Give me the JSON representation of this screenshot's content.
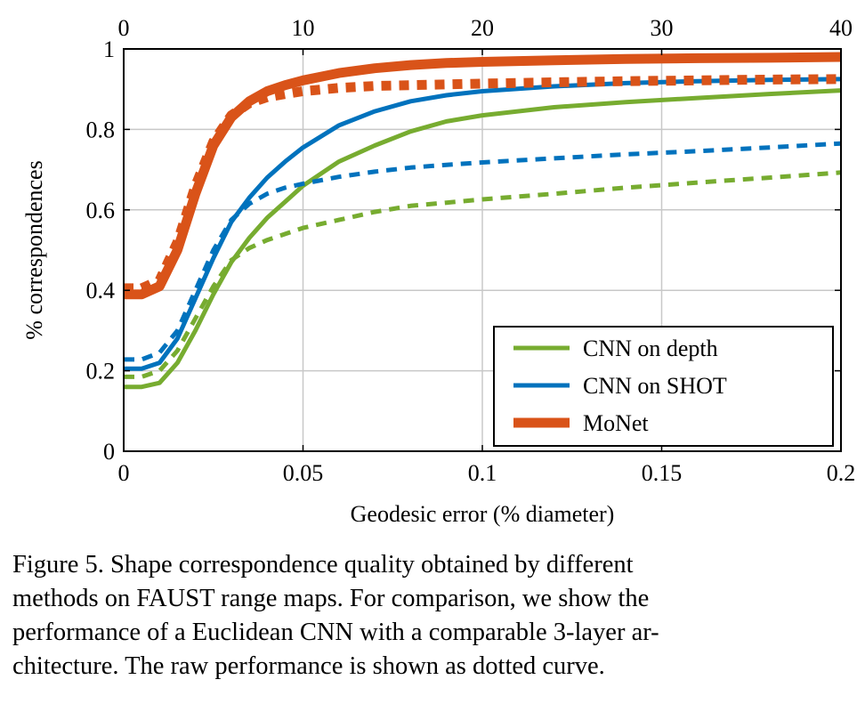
{
  "chart_data": {
    "type": "line",
    "x_bottom": {
      "label": "Geodesic error (% diameter)",
      "range": [
        0,
        0.2
      ],
      "ticks": [
        0,
        0.05,
        0.1,
        0.15,
        0.2
      ],
      "tick_labels": [
        "0",
        "0.05",
        "0.1",
        "0.15",
        "0.2"
      ]
    },
    "x_top": {
      "range": [
        0,
        40
      ],
      "ticks": [
        0,
        10,
        20,
        30,
        40
      ],
      "tick_labels": [
        "0",
        "10",
        "20",
        "30",
        "40"
      ]
    },
    "y": {
      "label": "% correspondences",
      "range": [
        0,
        1
      ],
      "ticks": [
        0,
        0.2,
        0.4,
        0.6,
        0.8,
        1
      ],
      "tick_labels": [
        "0",
        "0.2",
        "0.4",
        "0.6",
        "0.8",
        "1"
      ]
    },
    "grid": true,
    "legend_position": "bottom-right",
    "x": [
      0,
      0.005,
      0.01,
      0.015,
      0.02,
      0.025,
      0.03,
      0.035,
      0.04,
      0.045,
      0.05,
      0.06,
      0.07,
      0.08,
      0.09,
      0.1,
      0.12,
      0.14,
      0.16,
      0.18,
      0.2
    ],
    "series": [
      {
        "name": "CNN on depth",
        "style": "solid",
        "color": "#77ac30",
        "legend": true,
        "values": [
          0.16,
          0.16,
          0.17,
          0.22,
          0.3,
          0.39,
          0.47,
          0.53,
          0.58,
          0.62,
          0.66,
          0.72,
          0.76,
          0.795,
          0.82,
          0.835,
          0.855,
          0.868,
          0.878,
          0.888,
          0.897
        ]
      },
      {
        "name": "CNN on depth (raw)",
        "style": "dotted",
        "color": "#77ac30",
        "legend": false,
        "values": [
          0.185,
          0.185,
          0.2,
          0.25,
          0.33,
          0.41,
          0.475,
          0.505,
          0.525,
          0.54,
          0.555,
          0.575,
          0.595,
          0.61,
          0.618,
          0.626,
          0.64,
          0.655,
          0.668,
          0.68,
          0.693
        ]
      },
      {
        "name": "CNN on SHOT",
        "style": "solid",
        "color": "#0072bd",
        "legend": true,
        "values": [
          0.205,
          0.205,
          0.22,
          0.28,
          0.38,
          0.48,
          0.57,
          0.63,
          0.68,
          0.72,
          0.755,
          0.81,
          0.845,
          0.87,
          0.885,
          0.895,
          0.907,
          0.915,
          0.92,
          0.923,
          0.925
        ]
      },
      {
        "name": "CNN on SHOT (raw)",
        "style": "dotted",
        "color": "#0072bd",
        "legend": false,
        "values": [
          0.228,
          0.228,
          0.245,
          0.3,
          0.4,
          0.5,
          0.575,
          0.615,
          0.64,
          0.655,
          0.665,
          0.682,
          0.695,
          0.705,
          0.712,
          0.718,
          0.728,
          0.738,
          0.746,
          0.755,
          0.765
        ]
      },
      {
        "name": "MoNet",
        "style": "solid",
        "color": "#d95319",
        "legend": true,
        "values": [
          0.39,
          0.39,
          0.41,
          0.5,
          0.64,
          0.76,
          0.83,
          0.87,
          0.895,
          0.91,
          0.922,
          0.94,
          0.952,
          0.96,
          0.965,
          0.968,
          0.972,
          0.975,
          0.977,
          0.978,
          0.98
        ]
      },
      {
        "name": "MoNet (raw)",
        "style": "dotted",
        "color": "#d95319",
        "legend": false,
        "values": [
          0.405,
          0.405,
          0.425,
          0.52,
          0.66,
          0.77,
          0.835,
          0.865,
          0.88,
          0.888,
          0.895,
          0.903,
          0.908,
          0.91,
          0.912,
          0.914,
          0.917,
          0.92,
          0.922,
          0.924,
          0.925
        ]
      }
    ]
  },
  "caption": {
    "line1": "Figure 5. Shape correspondence quality obtained by different",
    "line2": "methods on FAUST range maps.  For comparison, we show the",
    "line3": "performance of a Euclidean CNN with a comparable 3-layer ar-",
    "line4": "chitecture. The raw performance is shown as dotted curve."
  }
}
